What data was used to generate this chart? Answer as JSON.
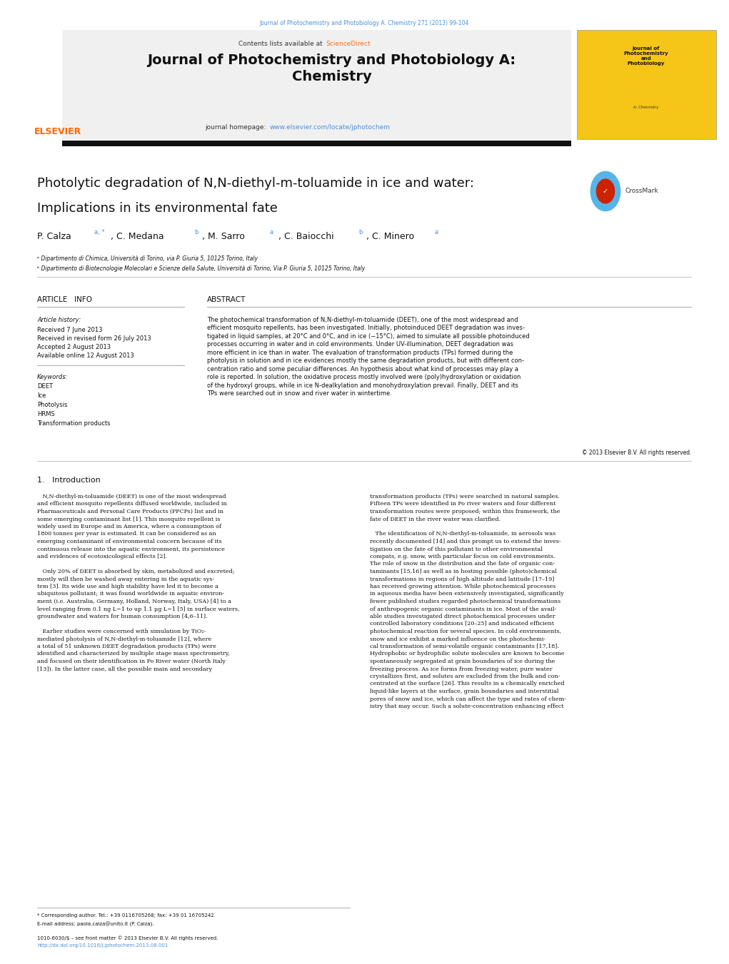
{
  "page_width": 10.21,
  "page_height": 13.51,
  "bg_color": "#ffffff",
  "journal_ref": "Journal of Photochemistry and Photobiology A: Chemistry 271 (2013) 99-104",
  "journal_ref_color": "#4a90d9",
  "header_title": "Journal of Photochemistry and Photobiology A:\nChemistry",
  "sciencedirect_color": "#f97316",
  "homepage_url_color": "#4a90d9",
  "elsevier_color": "#ff6600",
  "article_title_line1": "Photolytic degradation of N,N-diethyl-m-toluamide in ice and water:",
  "article_title_line2": "Implications in its environmental fate",
  "affil_a": "ᵃ Dipartimento di Chimica, Università di Torino, via P. Giuria 5, 10125 Torino, Italy",
  "affil_b": "ᵇ Dipartimento di Biotecnologie Molecolari e Scienze della Salute, Università di Torino, Via P. Giuria 5, 10125 Torino, Italy",
  "article_info_header": "ARTICLE   INFO",
  "abstract_header": "ABSTRACT",
  "received": "Received 7 June 2013",
  "revised": "Received in revised form 26 July 2013",
  "accepted": "Accepted 2 August 2013",
  "available": "Available online 12 August 2013",
  "keywords": [
    "DEET",
    "Ice",
    "Photolysis",
    "HRMS",
    "Transformation products"
  ],
  "abstract_text": "The photochemical transformation of N,N-diethyl-m-toluamide (DEET), one of the most widespread and\nefficient mosquito repellents, has been investigated. Initially, photoinduced DEET degradation was inves-\ntigated in liquid samples, at 20°C and 0°C, and in ice (−15°C), aimed to simulate all possible photoinduced\nprocesses occurring in water and in cold environments. Under UV-illumination, DEET degradation was\nmore efficient in ice than in water. The evaluation of transformation products (TPs) formed during the\nphotolysis in solution and in ice evidences mostly the same degradation products, but with different con-\ncentration ratio and some peculiar differences. An hypothesis about what kind of processes may play a\nrole is reported. In solution, the oxidative process mostly involved were (poly)hydroxylation or oxidation\nof the hydroxyl groups, while in ice N-dealkylation and monohydroxylation prevail. Finally, DEET and its\nTPs were searched out in snow and river water in wintertime.",
  "copyright": "© 2013 Elsevier B.V. All rights reserved.",
  "intro_header": "1.   Introduction",
  "intro_col1_lines": [
    "   N,N-diethyl-m-toluamide (DEET) is one of the most widespread",
    "and efficient mosquito repellents diffused worldwide, included in",
    "Pharmaceuticals and Personal Care Products (PPCPs) list and in",
    "some emerging contaminant list [1]. This mosquito repellent is",
    "widely used in Europe and in America, where a consumption of",
    "1800 tonnes per year is estimated. It can be considered as an",
    "emerging contaminant of environmental concern because of its",
    "continuous release into the aquatic environment, its persistence",
    "and evidences of ecotoxicological effects [2].",
    "",
    "   Only 20% of DEET is absorbed by skin, metabolized and excreted;",
    "mostly will then be washed away entering in the aquatic sys-",
    "tem [3]. Its wide use and high stability have led it to become a",
    "ubiquitous pollutant; it was found worldwide in aquatic environ-",
    "ment (i.e. Australia, Germany, Holland, Norway, Italy, USA) [4] to a",
    "level ranging from 0.1 ng L−1 to up 1.1 μg L−1 [5] in surface waters,",
    "groundwater and waters for human consumption [4,6–11].",
    "",
    "   Earlier studies were concerned with simulation by TiO₂-",
    "mediated photolysis of N,N-diethyl-m-toluamide [12], where",
    "a total of 51 unknown DEET degradation products (TPs) were",
    "identified and characterized by multiple stage mass spectrometry,",
    "and focused on their identification in Po River water (North Italy",
    "[13]). In the latter case, all the possible main and secondary"
  ],
  "intro_col2_lines": [
    "transformation products (TPs) were searched in natural samples.",
    "Fifteen TPs were identified in Po river waters and four different",
    "transformation routes were proposed; within this framework, the",
    "fate of DEET in the river water was clarified.",
    "",
    "   The identification of N,N-diethyl-m-toluamide, in aerosols was",
    "recently documented [14] and this prompt us to extend the inves-",
    "tigation on the fate of this pollutant to other environmental",
    "compats, e.g. snow, with particular focus on cold environments.",
    "The role of snow in the distribution and the fate of organic con-",
    "taminants [15,16] as well as in hosting possible (photo)chemical",
    "transformations in regions of high altitude and latitude [17–19]",
    "has received growing attention. While photochemical processes",
    "in aqueous media have been extensively investigated, significantly",
    "fewer published studies regarded photochemical transformations",
    "of anthropogenic organic contaminants in ice. Most of the avail-",
    "able studies investigated direct photochemical processes under",
    "controlled laboratory conditions [20–25] and indicated efficient",
    "photochemical reaction for several species. In cold environments,",
    "snow and ice exhibit a marked influence on the photochemi-",
    "cal transformation of semi-volatile organic contaminants [17,18].",
    "Hydrophobic or hydrophilic solute molecules are known to become",
    "spontaneously segregated at grain boundaries of ice during the",
    "freezing process. As ice forms from freezing water, pure water",
    "crystallizes first, and solutes are excluded from the bulk and con-",
    "centrated at the surface [26]. This results in a chemically enriched",
    "liquid-like layers at the surface, grain boundaries and interstitial",
    "pores of snow and ice, which can affect the type and rates of chem-",
    "istry that may occur. Such a solute-concentration enhancing effect"
  ],
  "footer_note1": "* Corresponding author. Tel.: +39 0116705268; fax: +39 01 16705242.",
  "footer_note2": "E-mail address: paola.calza@unito.it (P. Calza).",
  "footer_issn": "1010-6030/$ – see front matter © 2013 Elsevier B.V. All rights reserved.",
  "footer_doi": "http://dx.doi.org/10.1016/j.jphotochem.2013.08.001",
  "footer_doi_color": "#4a90d9"
}
